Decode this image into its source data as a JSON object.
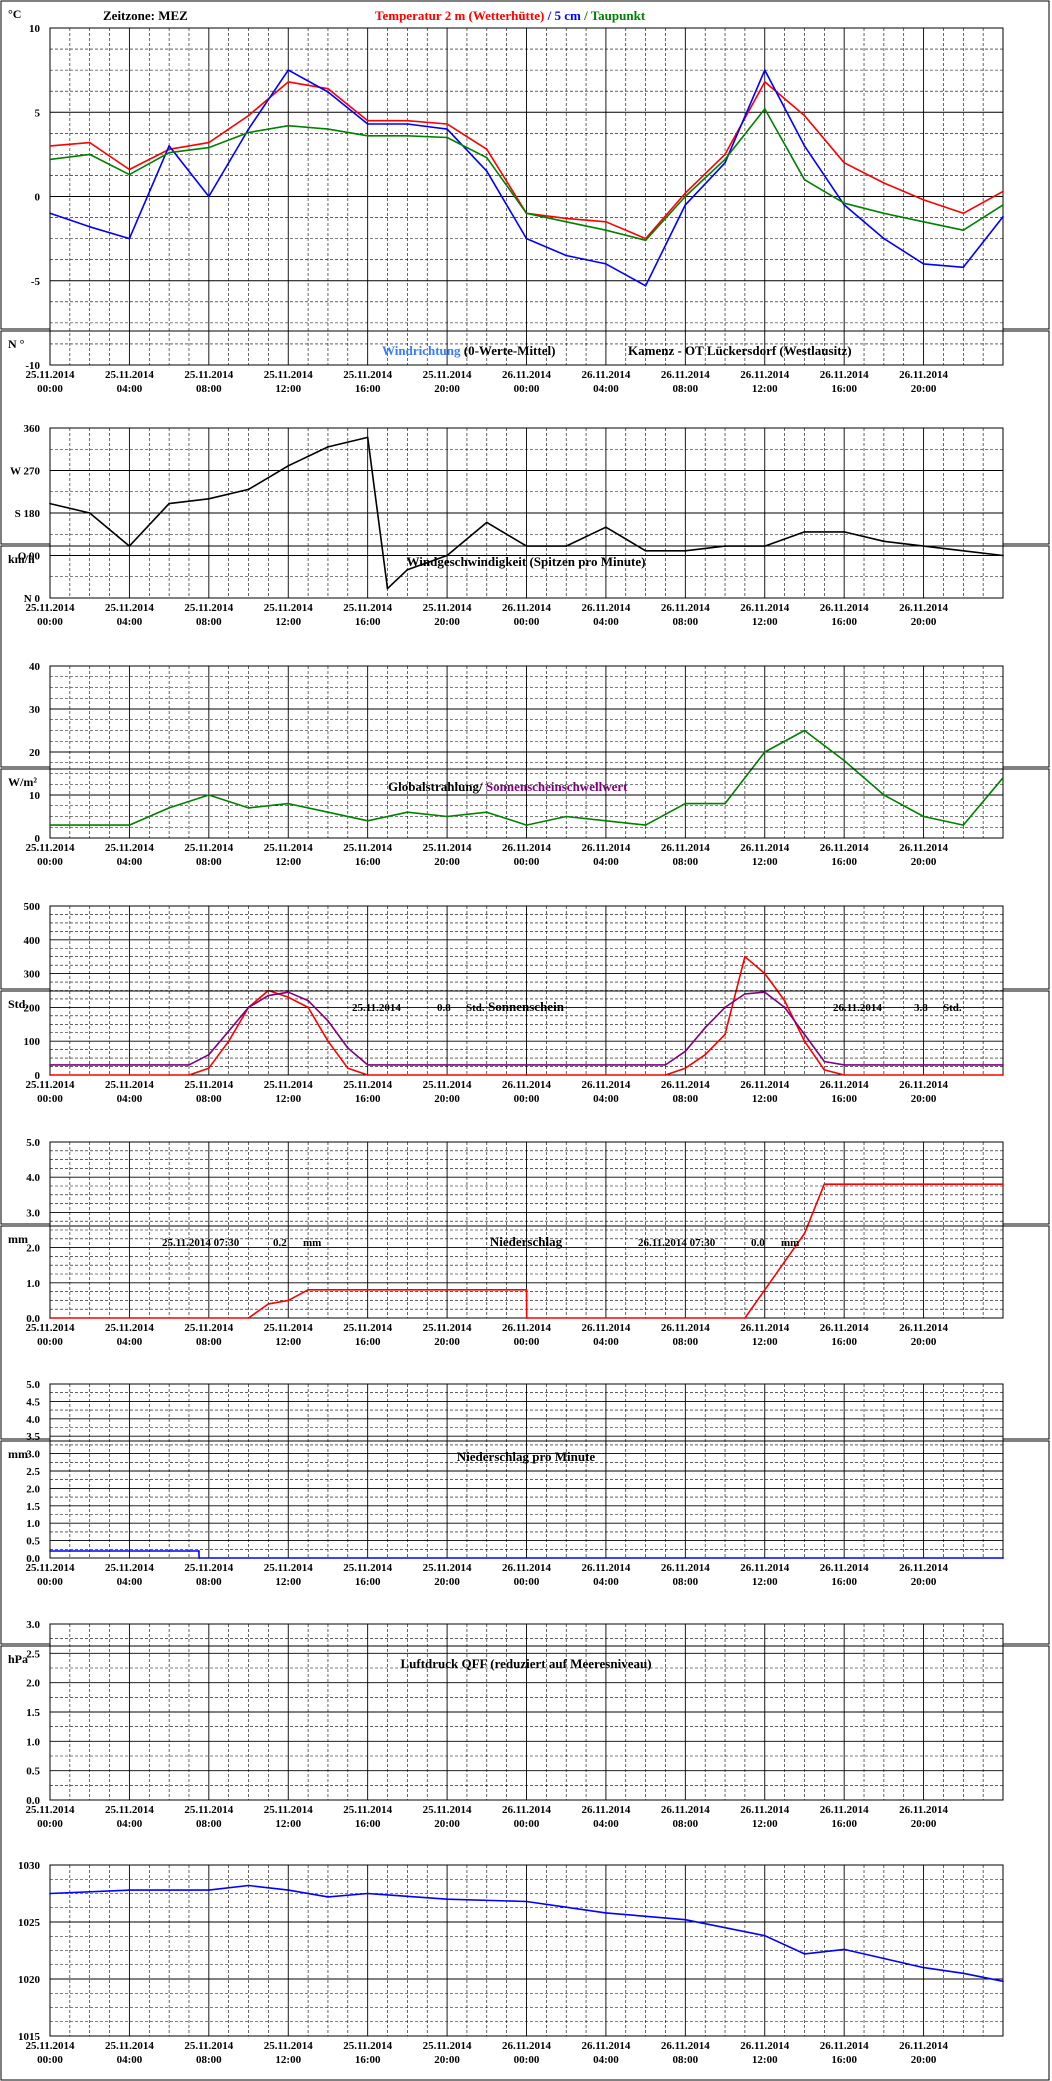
{
  "x_ticks": [
    {
      "date": "25.11.2014",
      "time": "00:00"
    },
    {
      "date": "25.11.2014",
      "time": "04:00"
    },
    {
      "date": "25.11.2014",
      "time": "08:00"
    },
    {
      "date": "25.11.2014",
      "time": "12:00"
    },
    {
      "date": "25.11.2014",
      "time": "16:00"
    },
    {
      "date": "25.11.2014",
      "time": "20:00"
    },
    {
      "date": "26.11.2014",
      "time": "00:00"
    },
    {
      "date": "26.11.2014",
      "time": "04:00"
    },
    {
      "date": "26.11.2014",
      "time": "08:00"
    },
    {
      "date": "26.11.2014",
      "time": "12:00"
    },
    {
      "date": "26.11.2014",
      "time": "16:00"
    },
    {
      "date": "26.11.2014",
      "time": "20:00"
    }
  ],
  "colors": {
    "red": "#ff0000",
    "blue": "#0000ff",
    "green": "#008000",
    "lightblue": "#3a7bff",
    "purple": "#800080",
    "black": "#000000"
  },
  "chart_data": [
    {
      "type": "line",
      "unit": "°C",
      "timezone": "Zeitzone: MEZ",
      "title_parts": [
        "Temperatur 2 m (Wetterhütte)",
        " / ",
        "5 cm",
        " / ",
        "Taupunkt"
      ],
      "ylim": [
        -10,
        10
      ],
      "y_ticks": [
        "10",
        "5",
        "0",
        "-5",
        "-10"
      ],
      "x_hours": [
        0,
        2,
        4,
        6,
        8,
        10,
        12,
        14,
        16,
        18,
        20,
        22,
        24,
        26,
        28,
        30,
        32,
        34,
        36,
        38,
        40,
        42,
        44,
        46,
        48
      ],
      "series": [
        {
          "name": "Temperatur 2 m (Wetterhütte)",
          "color": "#ff0000",
          "values": [
            3.0,
            3.2,
            1.6,
            2.8,
            3.2,
            4.8,
            6.8,
            6.4,
            4.5,
            4.5,
            4.3,
            2.8,
            -1.0,
            -1.3,
            -1.5,
            -2.5,
            0.2,
            2.5,
            6.8,
            4.8,
            2.0,
            0.8,
            -0.2,
            -1.0,
            0.3
          ]
        },
        {
          "name": "5 cm",
          "color": "#0000ff",
          "values": [
            -1.0,
            -1.8,
            -2.5,
            3.0,
            0.0,
            4.0,
            7.5,
            6.2,
            4.3,
            4.3,
            4.0,
            1.5,
            -2.5,
            -3.5,
            -4.0,
            -5.3,
            -0.5,
            2.0,
            7.5,
            3.0,
            -0.5,
            -2.5,
            -4.0,
            -4.2,
            -1.2
          ]
        },
        {
          "name": "Taupunkt",
          "color": "#008000",
          "values": [
            2.2,
            2.5,
            1.3,
            2.6,
            2.9,
            3.8,
            4.2,
            4.0,
            3.6,
            3.6,
            3.5,
            2.3,
            -1.0,
            -1.5,
            -2.0,
            -2.6,
            0.0,
            2.2,
            5.2,
            1.0,
            -0.4,
            -1.0,
            -1.5,
            -2.0,
            -0.5
          ]
        }
      ]
    },
    {
      "type": "line",
      "unit": "N °",
      "title_parts": [
        "Windrichtung",
        " (0-Werte-Mittel)",
        "Kamenz - OT Lückersdorf (Westlausitz)"
      ],
      "ylim": [
        0,
        360
      ],
      "y_ticks": [
        "360",
        "W 270",
        "S 180",
        "O 90",
        "N 0"
      ],
      "x_hours": [
        0,
        2,
        4,
        6,
        8,
        10,
        12,
        14,
        16,
        17,
        18,
        20,
        22,
        24,
        26,
        28,
        30,
        32,
        34,
        36,
        38,
        40,
        42,
        44,
        46,
        48
      ],
      "series": [
        {
          "name": "Windrichtung",
          "color": "#000000",
          "values": [
            200,
            180,
            110,
            200,
            210,
            230,
            280,
            320,
            340,
            20,
            60,
            90,
            160,
            110,
            110,
            150,
            100,
            100,
            110,
            110,
            140,
            140,
            120,
            110,
            100,
            90
          ]
        }
      ]
    },
    {
      "type": "line",
      "unit": "km/h",
      "title_parts": [
        "Windgeschwindigkeit (Spitzen pro Minute)"
      ],
      "ylim": [
        0,
        40
      ],
      "y_ticks": [
        "40",
        "30",
        "20",
        "10",
        "0"
      ],
      "x_hours": [
        0,
        2,
        4,
        6,
        8,
        10,
        12,
        14,
        16,
        18,
        20,
        22,
        24,
        26,
        28,
        30,
        32,
        34,
        36,
        38,
        40,
        42,
        44,
        46,
        48
      ],
      "series": [
        {
          "name": "Windgeschwindigkeit",
          "color": "#008000",
          "values": [
            3,
            3,
            3,
            7,
            10,
            7,
            8,
            6,
            4,
            6,
            5,
            6,
            3,
            5,
            4,
            3,
            8,
            8,
            20,
            25,
            18,
            10,
            5,
            3,
            14
          ]
        }
      ]
    },
    {
      "type": "line",
      "unit": "W/m²",
      "title_parts": [
        "Globalstrahlung/",
        " Sonnenscheinschwellwert"
      ],
      "ylim": [
        0,
        500
      ],
      "y_ticks": [
        "500",
        "400",
        "300",
        "200",
        "100",
        "0"
      ],
      "x_hours": [
        0,
        6,
        7,
        8,
        9,
        10,
        11,
        12,
        13,
        14,
        15,
        16,
        24,
        31,
        32,
        33,
        34,
        35,
        36,
        37,
        38,
        39,
        40,
        48
      ],
      "series": [
        {
          "name": "Globalstrahlung",
          "color": "#ff0000",
          "values": [
            0,
            0,
            0,
            20,
            100,
            200,
            250,
            230,
            200,
            100,
            20,
            0,
            0,
            0,
            20,
            60,
            120,
            350,
            300,
            220,
            100,
            15,
            0,
            0
          ]
        },
        {
          "name": "Sonnenscheinschwellwert",
          "color": "#800080",
          "values": [
            30,
            30,
            30,
            60,
            130,
            200,
            235,
            245,
            220,
            160,
            80,
            30,
            30,
            30,
            70,
            140,
            200,
            240,
            245,
            200,
            120,
            40,
            30,
            30
          ]
        }
      ]
    },
    {
      "type": "line",
      "unit": "Std.",
      "title_parts": [
        "Sonnenschein"
      ],
      "daily": [
        {
          "date": "25.11.2014",
          "value": "0.8",
          "unit": "Std."
        },
        {
          "date": "26.11.2014",
          "value": "3.8",
          "unit": "Std."
        }
      ],
      "ylim": [
        0,
        5
      ],
      "y_ticks": [
        "5.0",
        "4.0",
        "3.0",
        "2.0",
        "1.0",
        "0.0"
      ],
      "x_hours": [
        0,
        10,
        11,
        12,
        13,
        24,
        24.01,
        35,
        36,
        37,
        38,
        39,
        48
      ],
      "series": [
        {
          "name": "Sonnenschein",
          "color": "#ff0000",
          "values": [
            0,
            0,
            0.4,
            0.5,
            0.8,
            0.8,
            0,
            0,
            0.8,
            1.6,
            2.4,
            3.8,
            3.8
          ]
        }
      ]
    },
    {
      "type": "line",
      "unit": "mm",
      "title_parts": [
        "Niederschlag"
      ],
      "daily": [
        {
          "date": "25.11.2014 07:30",
          "value": "0.2",
          "unit": "mm"
        },
        {
          "date": "26.11.2014 07:30",
          "value": "0.0",
          "unit": "mm"
        }
      ],
      "ylim": [
        0,
        5
      ],
      "y_ticks": [
        "5.0",
        "4.5",
        "4.0",
        "3.5",
        "3.0",
        "2.5",
        "2.0",
        "1.5",
        "1.0",
        "0.5",
        "0.0"
      ],
      "x_hours": [
        0,
        7.5,
        7.51,
        48
      ],
      "series": [
        {
          "name": "Niederschlag",
          "color": "#0000ff",
          "values": [
            0.2,
            0.2,
            0,
            0
          ]
        }
      ]
    },
    {
      "type": "line",
      "unit": "mm",
      "title_parts": [
        "Niederschlag pro Minute"
      ],
      "ylim": [
        0,
        3
      ],
      "y_ticks": [
        "3.0",
        "2.5",
        "2.0",
        "1.5",
        "1.0",
        "0.5",
        "0.0"
      ],
      "series": []
    },
    {
      "type": "line",
      "unit": "hPa",
      "title_parts": [
        "Luftdruck QFF (reduziert auf Meeresniveau)"
      ],
      "ylim": [
        1015,
        1030
      ],
      "y_ticks": [
        "1030",
        "1025",
        "1020",
        "1015"
      ],
      "x_hours": [
        0,
        4,
        8,
        10,
        12,
        14,
        16,
        20,
        24,
        28,
        32,
        36,
        38,
        40,
        42,
        44,
        46,
        48
      ],
      "series": [
        {
          "name": "Luftdruck QFF",
          "color": "#0000ff",
          "values": [
            1027.5,
            1027.8,
            1027.8,
            1028.2,
            1027.8,
            1027.2,
            1027.5,
            1027.0,
            1026.8,
            1025.8,
            1025.2,
            1023.8,
            1022.2,
            1022.6,
            1021.8,
            1021.0,
            1020.5,
            1019.8
          ]
        }
      ]
    }
  ]
}
